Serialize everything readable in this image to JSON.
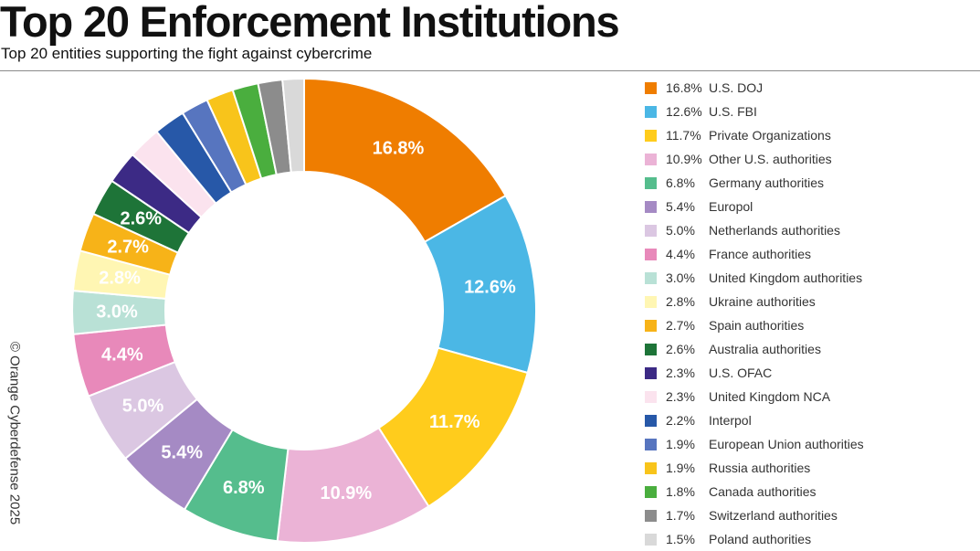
{
  "header": {
    "title": "Top 20 Enforcement Institutions",
    "subtitle": "Top 20 entities supporting the fight against cybercrime"
  },
  "credit": "© Orange Cyberdefense 2025",
  "chart_data": {
    "type": "pie",
    "style": "donut",
    "title": "Top 20 Enforcement Institutions",
    "subtitle": "Top 20 entities supporting the fight against cybercrime",
    "legend_position": "right",
    "categories": [
      "U.S. DOJ",
      "U.S. FBI",
      "Private Organizations",
      "Other U.S. authorities",
      "Germany authorities",
      "Europol",
      "Netherlands authorities",
      "France authorities",
      "United Kingdom authorities",
      "Ukraine authorities",
      "Spain authorities",
      "Australia authorities",
      "U.S. OFAC",
      "United Kingdom NCA",
      "Interpol",
      "European Union authorities",
      "Russia authorities",
      "Canada authorities",
      "Switzerland authorities",
      "Poland authorities"
    ],
    "values": [
      16.8,
      12.6,
      11.7,
      10.9,
      6.8,
      5.4,
      5.0,
      4.4,
      3.0,
      2.8,
      2.7,
      2.6,
      2.3,
      2.3,
      2.2,
      1.9,
      1.9,
      1.8,
      1.7,
      1.5
    ],
    "labels": [
      "16.8%",
      "12.6%",
      "11.7%",
      "10.9%",
      "6.8%",
      "5.4%",
      "5.0%",
      "4.4%",
      "3.0%",
      "2.8%",
      "2.7%",
      "2.6%",
      "2.3%",
      "2.3%",
      "2.2%",
      "1.9%",
      "1.9%",
      "1.8%",
      "1.7%",
      "1.5%"
    ],
    "slice_labels_shown": [
      true,
      true,
      true,
      true,
      true,
      true,
      true,
      true,
      true,
      true,
      true,
      true,
      false,
      false,
      false,
      false,
      false,
      false,
      false,
      false
    ],
    "colors": [
      "#EF7D00",
      "#4BB7E5",
      "#FFCC1C",
      "#EBB3D6",
      "#55BD8D",
      "#A58AC4",
      "#DBC7E2",
      "#E889BA",
      "#B9E1D6",
      "#FFF6B3",
      "#F7B318",
      "#1E7438",
      "#3C2A85",
      "#FBE3EE",
      "#2758A8",
      "#5775BF",
      "#F8C41B",
      "#4AAE3E",
      "#8C8C8C",
      "#D9D9D9"
    ],
    "label_colors": [
      "#ffffff",
      "#ffffff",
      "#ffffff",
      "#ffffff",
      "#ffffff",
      "#ffffff",
      "#ffffff",
      "#ffffff",
      "#ffffff",
      "#ffffff",
      "#ffffff",
      "#ffffff",
      "#ffffff",
      "#ffffff",
      "#ffffff",
      "#ffffff",
      "#ffffff",
      "#ffffff",
      "#ffffff",
      "#ffffff"
    ]
  }
}
